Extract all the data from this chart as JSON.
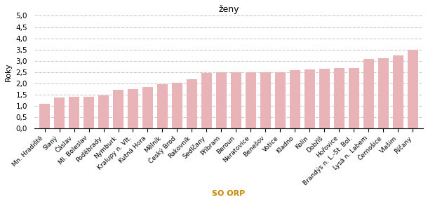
{
  "title": "ženy",
  "xlabel": "SO ORP",
  "ylabel": "Roky",
  "bar_color": "#e8b4b8",
  "background_color": "#ffffff",
  "grid_color": "#cccccc",
  "ylim": [
    0,
    5.0
  ],
  "yticks": [
    0.0,
    0.5,
    1.0,
    1.5,
    2.0,
    2.5,
    3.0,
    3.5,
    4.0,
    4.5,
    5.0
  ],
  "categories": [
    "Mn. Hradiště",
    "Slaný",
    "Čáslav",
    "Ml. Boleslav",
    "Poděbrady",
    "Nymburk",
    "Kralupy n. Vlt.",
    "Kutná Hora",
    "Mělník",
    "Český Brod",
    "Rakovník",
    "Sedlčany",
    "Příbram",
    "Beroun",
    "Neratovice",
    "Benešov",
    "Votice",
    "Kladno",
    "Kolín",
    "Dobříš",
    "Hořovice",
    "Brandýs n. L.-St. Bol.",
    "Lysá n. Labem",
    "Černošice",
    "Vlašim",
    "Říčany"
  ],
  "values": [
    1.08,
    1.36,
    1.4,
    1.38,
    1.45,
    1.7,
    1.72,
    1.82,
    1.95,
    2.02,
    2.18,
    2.44,
    2.5,
    2.5,
    2.5,
    2.5,
    2.5,
    2.58,
    2.6,
    2.65,
    2.67,
    2.67,
    3.08,
    3.12,
    3.25,
    3.5
  ]
}
